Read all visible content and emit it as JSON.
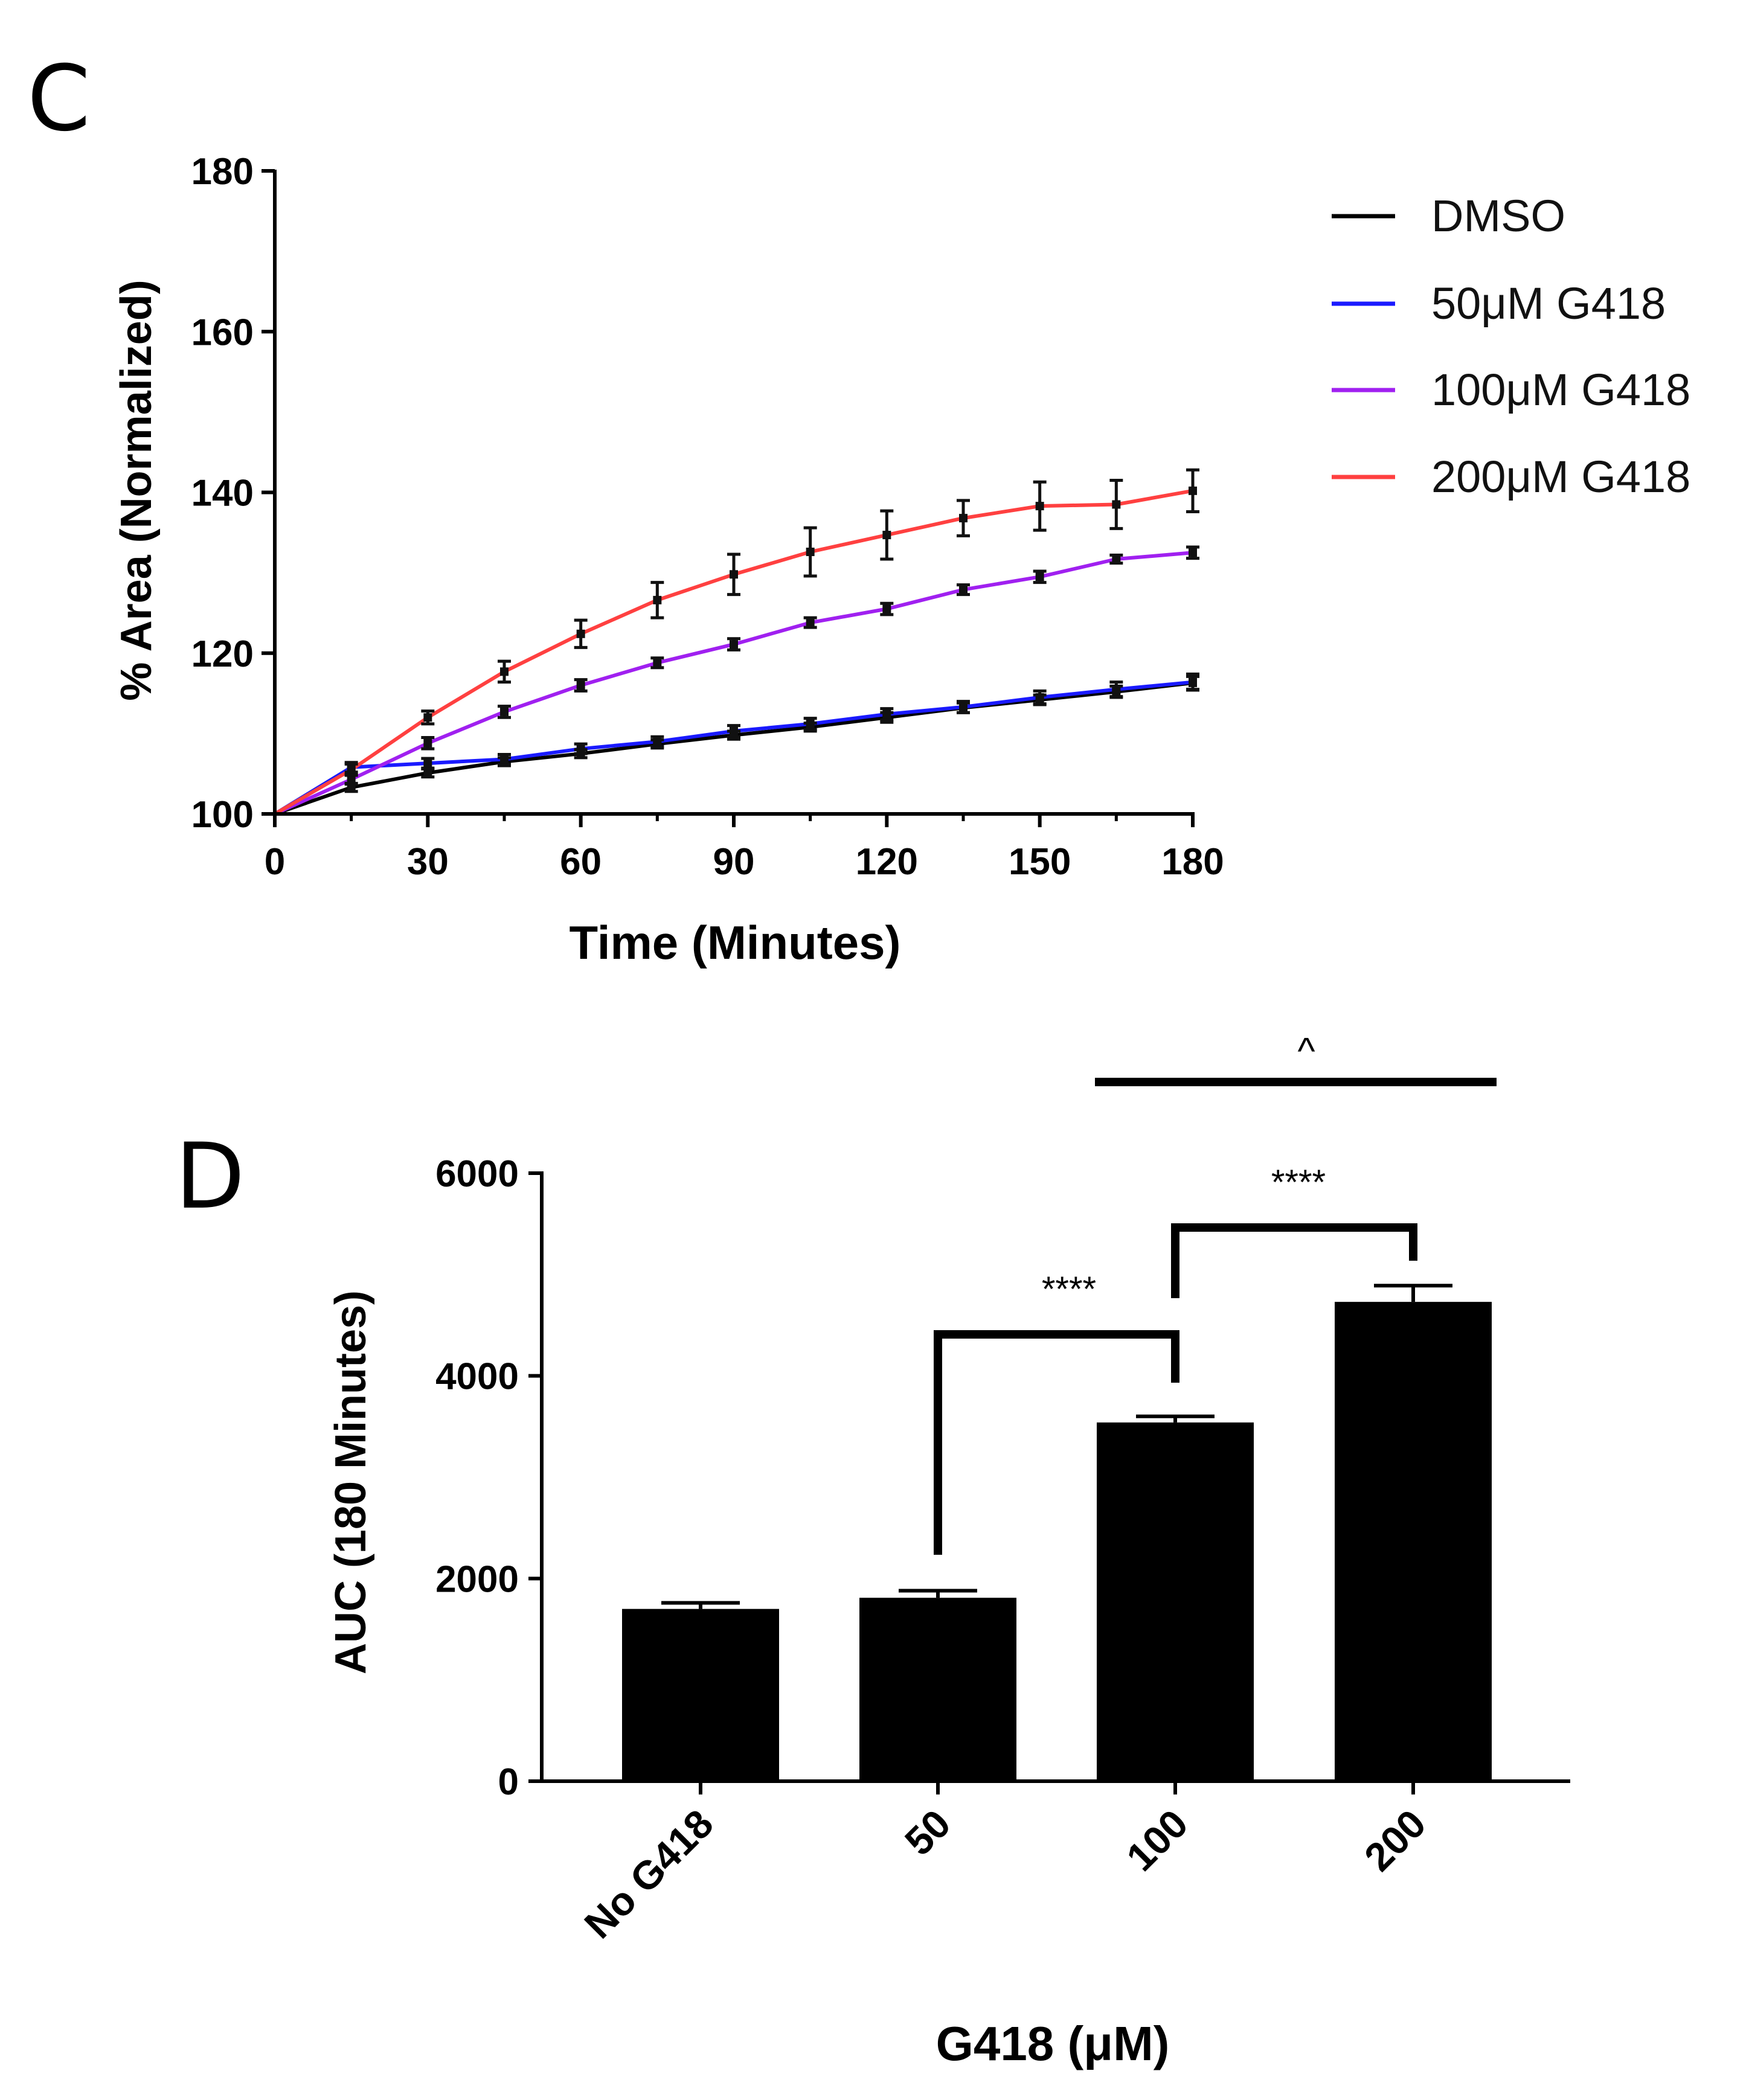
{
  "chart_data": [
    {
      "panel": "C",
      "type": "line",
      "xlabel": "Time (Minutes)",
      "ylabel": "% Area (Normalized)",
      "xlim": [
        0,
        180
      ],
      "ylim": [
        100,
        180
      ],
      "xticks": [
        0,
        30,
        60,
        90,
        120,
        150,
        180
      ],
      "yticks": [
        100,
        120,
        140,
        160,
        180
      ],
      "legend_position": "top-right",
      "x": [
        0,
        15,
        30,
        45,
        60,
        75,
        90,
        105,
        120,
        135,
        150,
        165,
        180
      ],
      "series": [
        {
          "name": "DMSO",
          "color": "#000000",
          "values": [
            100,
            103.3,
            105.1,
            106.5,
            107.5,
            108.7,
            109.8,
            110.8,
            112.0,
            113.2,
            114.2,
            115.2,
            116.3
          ],
          "errors": [
            0,
            0.5,
            0.5,
            0.5,
            0.5,
            0.5,
            0.5,
            0.5,
            0.6,
            0.6,
            0.6,
            0.7,
            0.8
          ]
        },
        {
          "name": "50μM G418",
          "color": "#1a1aff",
          "values": [
            100,
            105.8,
            106.3,
            106.8,
            108.1,
            109.0,
            110.3,
            111.2,
            112.4,
            113.3,
            114.5,
            115.5,
            116.4
          ],
          "errors": [
            0,
            0.6,
            0.6,
            0.6,
            0.6,
            0.6,
            0.7,
            0.7,
            0.7,
            0.7,
            0.8,
            0.9,
            1.0
          ]
        },
        {
          "name": "100μM G418",
          "color": "#a020f0",
          "values": [
            100,
            104.3,
            108.8,
            112.7,
            116.0,
            118.8,
            121.1,
            123.8,
            125.5,
            127.9,
            129.5,
            131.7,
            132.5
          ],
          "errors": [
            0,
            0.6,
            0.7,
            0.7,
            0.7,
            0.6,
            0.7,
            0.6,
            0.7,
            0.6,
            0.7,
            0.5,
            0.7
          ]
        },
        {
          "name": "200μM G418",
          "color": "#ff4040",
          "values": [
            100,
            105.5,
            112.0,
            117.7,
            122.4,
            126.6,
            129.8,
            132.6,
            134.7,
            136.8,
            138.3,
            138.5,
            140.2
          ],
          "errors": [
            0,
            0.7,
            0.8,
            1.3,
            1.7,
            2.2,
            2.5,
            3.0,
            3.0,
            2.2,
            3.0,
            3.0,
            2.6
          ]
        }
      ]
    },
    {
      "panel": "D",
      "type": "bar",
      "xlabel": "G418 (μM)",
      "ylabel": "AUC (180 Minutes)",
      "ylim": [
        0,
        6000
      ],
      "yticks": [
        0,
        2000,
        4000,
        6000
      ],
      "categories": [
        "No G418",
        "50",
        "100",
        "200"
      ],
      "values": [
        1700,
        1810,
        3540,
        4730
      ],
      "errors": [
        60,
        70,
        60,
        160
      ],
      "bar_color": "#000000",
      "significance": [
        {
          "from": "50",
          "to": "100",
          "label": "****"
        },
        {
          "from": "100",
          "to": "200",
          "label": "****"
        },
        {
          "from": "100",
          "to": "200",
          "label": "^"
        }
      ]
    }
  ]
}
